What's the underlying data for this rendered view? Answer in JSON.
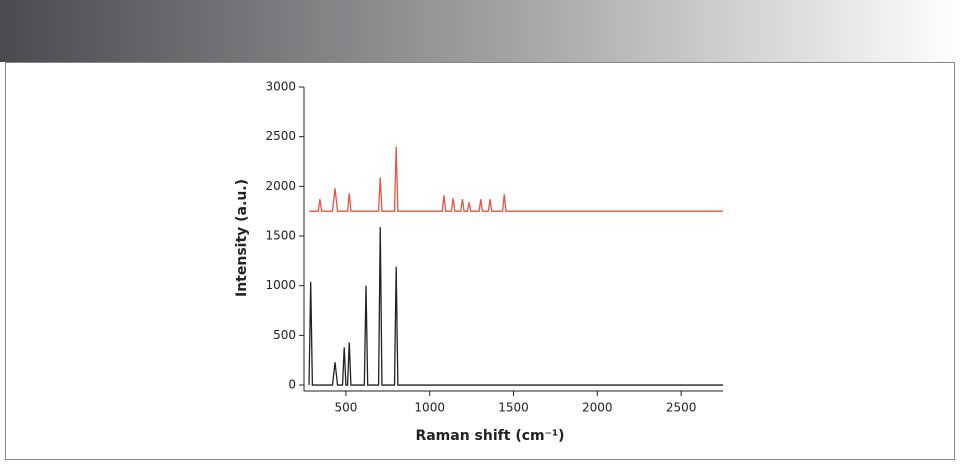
{
  "chart_data": {
    "type": "line",
    "x_label": "Raman shift (cm⁻¹)",
    "y_label": "Intensity (a.u.)",
    "xlim": [
      250,
      2750
    ],
    "xticks": [
      500,
      1000,
      1500,
      2000,
      2500
    ],
    "ylim": [
      -60,
      3000
    ],
    "yticks": [
      0,
      500,
      1000,
      1500,
      2000,
      2500,
      3000
    ],
    "x": [
      280,
      290,
      300,
      335,
      345,
      355,
      420,
      435,
      450,
      480,
      490,
      500,
      510,
      520,
      530,
      610,
      620,
      630,
      695,
      705,
      715,
      790,
      800,
      810,
      1075,
      1085,
      1095,
      1130,
      1140,
      1150,
      1185,
      1195,
      1205,
      1225,
      1235,
      1245,
      1295,
      1305,
      1315,
      1350,
      1360,
      1370,
      1435,
      1445,
      1455,
      2750
    ],
    "series": [
      {
        "color": "#222222",
        "values": [
          0,
          1040,
          0,
          0,
          0,
          0,
          0,
          230,
          0,
          0,
          380,
          0,
          0,
          430,
          0,
          0,
          1000,
          0,
          0,
          1590,
          0,
          0,
          1190,
          0,
          0,
          0,
          0,
          0,
          0,
          0,
          0,
          0,
          0,
          0,
          0,
          0,
          0,
          0,
          0,
          0,
          0,
          0,
          0,
          0,
          0,
          0
        ]
      },
      {
        "color": "#e8543f",
        "values": [
          1750,
          1750,
          1750,
          1750,
          1870,
          1750,
          1750,
          1980,
          1750,
          1750,
          1750,
          1750,
          1750,
          1930,
          1750,
          1750,
          1750,
          1750,
          1750,
          2090,
          1750,
          1750,
          2400,
          1750,
          1750,
          1910,
          1750,
          1750,
          1880,
          1750,
          1750,
          1870,
          1750,
          1750,
          1840,
          1750,
          1750,
          1870,
          1750,
          1750,
          1870,
          1750,
          1750,
          1920,
          1750,
          1750
        ]
      }
    ]
  }
}
